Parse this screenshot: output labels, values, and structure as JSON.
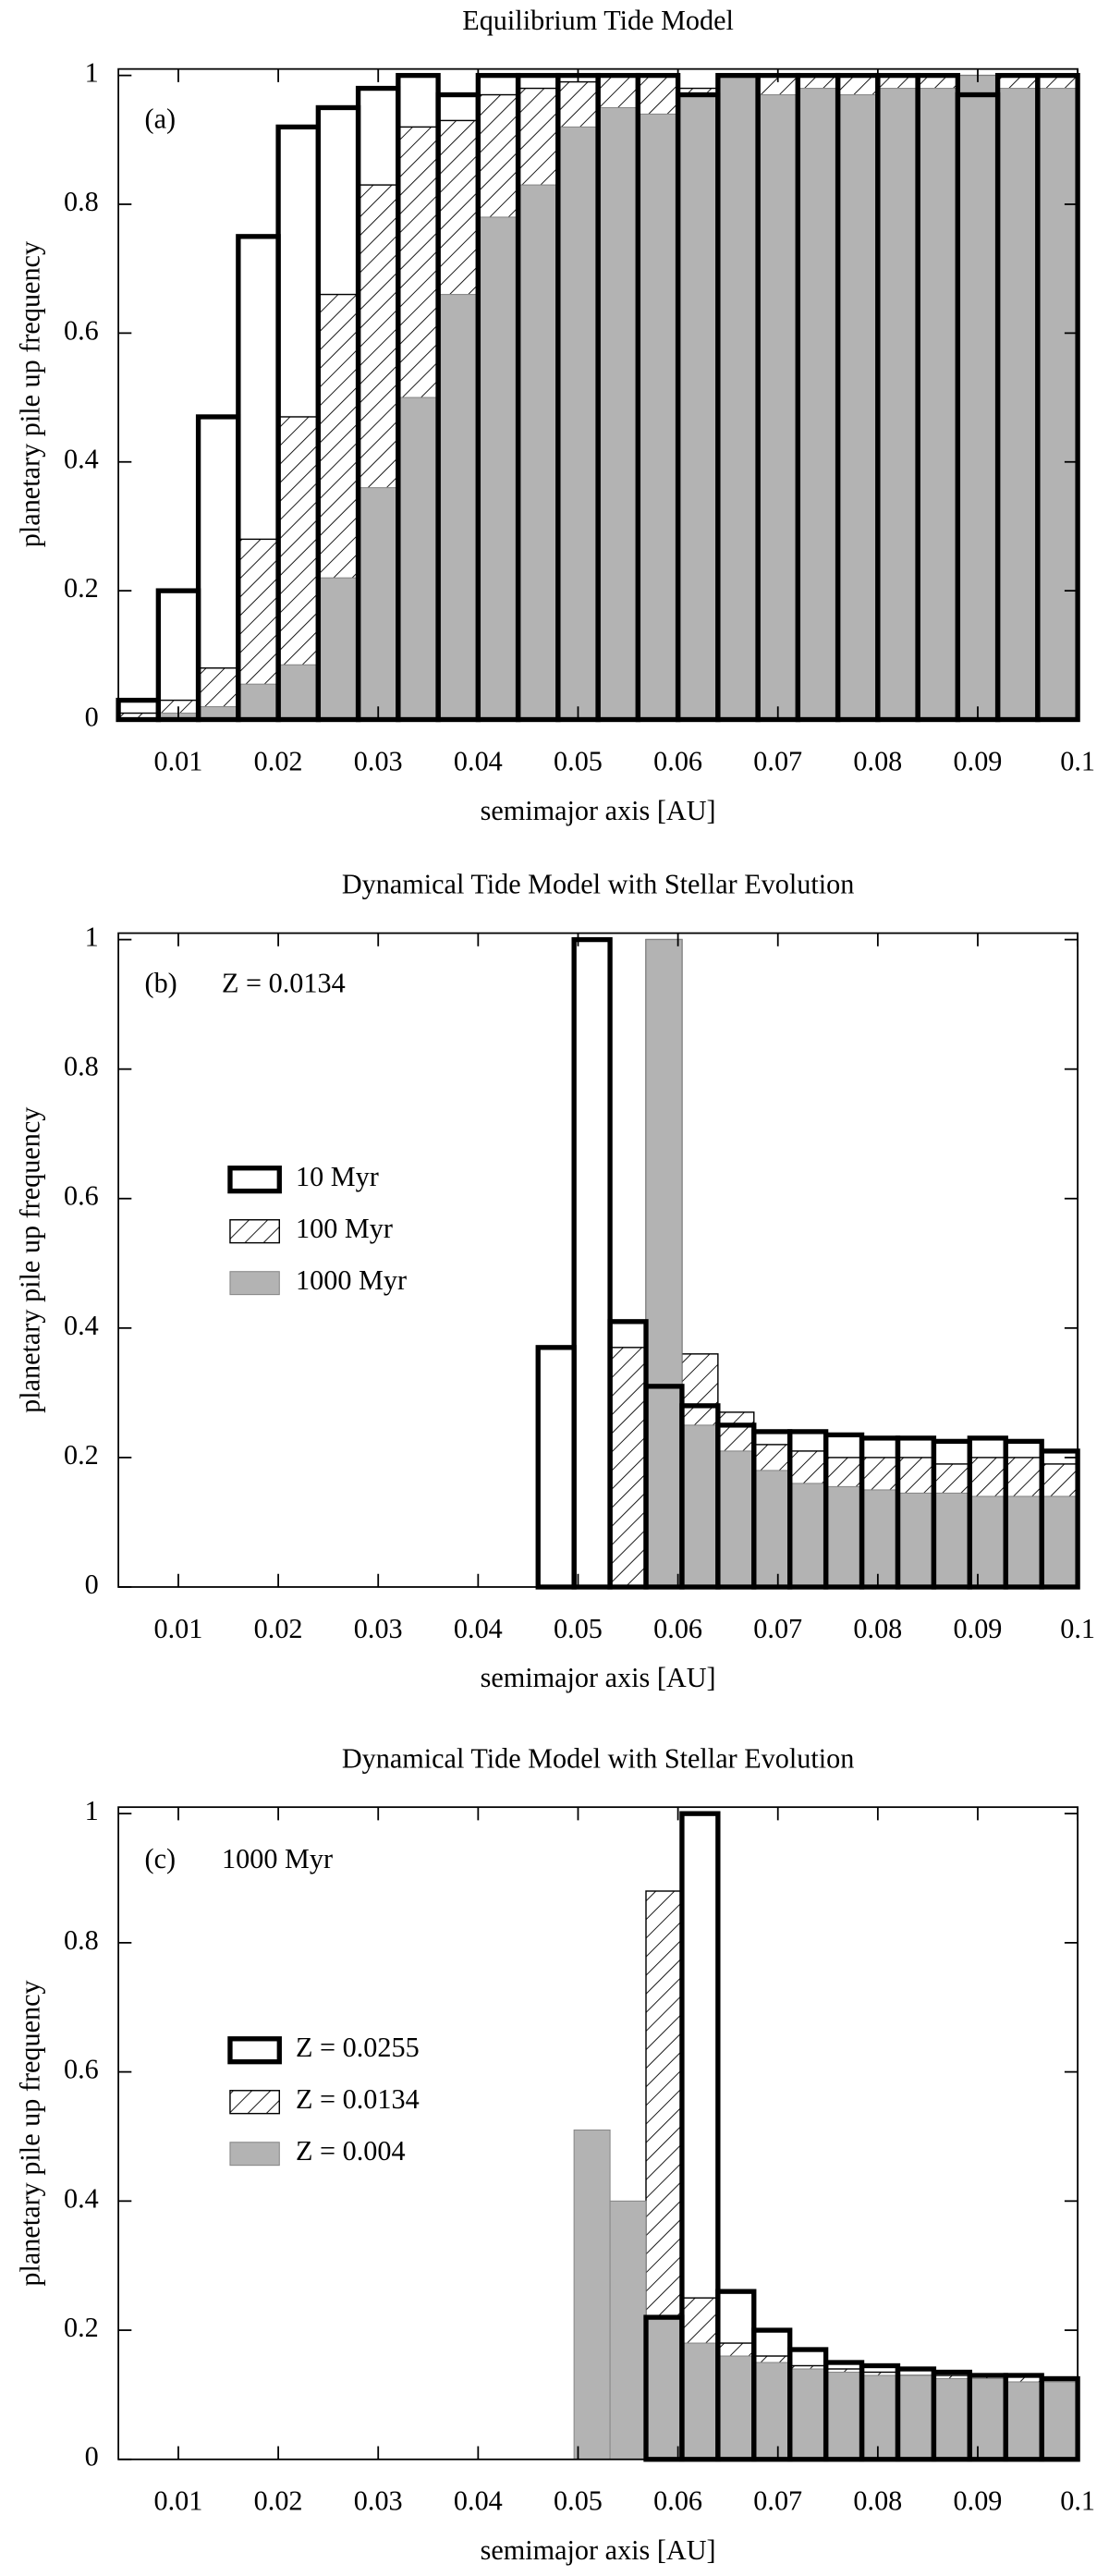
{
  "chart_data": [
    {
      "type": "histogram",
      "title": "Equilibrium Tide Model",
      "annotations": [
        "(a)"
      ],
      "xlabel": "semimajor axis [AU]",
      "ylabel": "planetary pile up frequency",
      "bins": [
        0.004,
        0.008,
        0.012,
        0.016,
        0.02,
        0.024,
        0.028,
        0.032,
        0.036,
        0.04,
        0.044,
        0.048,
        0.052,
        0.056,
        0.06,
        0.064,
        0.068,
        0.072,
        0.076,
        0.08,
        0.084,
        0.088,
        0.092,
        0.096,
        0.1
      ],
      "series": [
        {
          "style": "outline",
          "color": "#000000",
          "values": [
            0.03,
            0.2,
            0.47,
            0.75,
            0.92,
            0.95,
            0.98,
            1,
            0.97,
            1,
            1,
            1,
            1,
            1,
            0.97,
            1,
            1,
            1,
            1,
            1,
            1,
            0.97,
            1,
            1
          ]
        },
        {
          "style": "hatch",
          "color": "#000000",
          "values": [
            0.01,
            0.03,
            0.08,
            0.28,
            0.47,
            0.66,
            0.83,
            0.92,
            0.93,
            0.97,
            0.98,
            0.99,
            1,
            1,
            0.98,
            1,
            1,
            1,
            1,
            1,
            1,
            1,
            1,
            1
          ]
        },
        {
          "style": "fill",
          "color": "#b3b3b3",
          "values": [
            0,
            0.01,
            0.02,
            0.055,
            0.085,
            0.22,
            0.36,
            0.5,
            0.66,
            0.78,
            0.83,
            0.92,
            0.95,
            0.94,
            0.97,
            1,
            0.97,
            0.98,
            0.97,
            0.98,
            0.98,
            1,
            0.98,
            0.98
          ]
        }
      ],
      "xlim": [
        0.004,
        0.1
      ],
      "ylim": [
        0,
        1.01
      ],
      "xticks": [
        0.01,
        0.02,
        0.03,
        0.04,
        0.05,
        0.06,
        0.07,
        0.08,
        0.09,
        0.1
      ],
      "yticks": [
        0,
        0.2,
        0.4,
        0.6,
        0.8,
        1
      ]
    },
    {
      "type": "histogram",
      "title": "Dynamical Tide Model with Stellar Evolution",
      "annotations": [
        "(b)",
        "Z = 0.0134"
      ],
      "xlabel": "semimajor axis [AU]",
      "ylabel": "planetary pile up frequency",
      "legend": "center left",
      "bins": [
        0.046,
        0.0496,
        0.0532,
        0.0568,
        0.0604,
        0.064,
        0.0676,
        0.0712,
        0.0748,
        0.0784,
        0.082,
        0.0856,
        0.0892,
        0.0928,
        0.0964,
        0.1
      ],
      "series": [
        {
          "name": "10 Myr",
          "style": "outline",
          "color": "#000000",
          "values": [
            0.37,
            1,
            0.41,
            0.31,
            0.28,
            0.25,
            0.24,
            0.24,
            0.235,
            0.23,
            0.23,
            0.225,
            0.23,
            0.225,
            0.21
          ]
        },
        {
          "name": "100 Myr",
          "style": "hatch",
          "color": "#000000",
          "values": [
            0,
            0,
            0.37,
            1,
            0.36,
            0.27,
            0.22,
            0.21,
            0.2,
            0.2,
            0.2,
            0.19,
            0.2,
            0.2,
            0.19
          ]
        },
        {
          "name": "1000 Myr",
          "style": "fill",
          "color": "#b3b3b3",
          "values": [
            0,
            0,
            0,
            1,
            0.25,
            0.21,
            0.18,
            0.16,
            0.155,
            0.15,
            0.145,
            0.145,
            0.14,
            0.14,
            0.14
          ]
        }
      ],
      "xlim": [
        0.004,
        0.1
      ],
      "ylim": [
        0,
        1.01
      ],
      "xticks": [
        0.01,
        0.02,
        0.03,
        0.04,
        0.05,
        0.06,
        0.07,
        0.08,
        0.09,
        0.1
      ],
      "yticks": [
        0,
        0.2,
        0.4,
        0.6,
        0.8,
        1
      ]
    },
    {
      "type": "histogram",
      "title": "Dynamical Tide Model with Stellar Evolution",
      "annotations": [
        "(c)",
        "1000 Myr"
      ],
      "xlabel": "semimajor axis [AU]",
      "ylabel": "planetary pile up frequency",
      "legend": "center left",
      "bins": [
        0.046,
        0.0496,
        0.0532,
        0.0568,
        0.0604,
        0.064,
        0.0676,
        0.0712,
        0.0748,
        0.0784,
        0.082,
        0.0856,
        0.0892,
        0.0928,
        0.0964,
        0.1
      ],
      "series": [
        {
          "name": "Z = 0.0255",
          "style": "outline",
          "color": "#000000",
          "values": [
            0,
            0,
            0,
            0.22,
            1,
            0.26,
            0.2,
            0.17,
            0.15,
            0.145,
            0.14,
            0.135,
            0.13,
            0.13,
            0.125
          ]
        },
        {
          "name": "Z = 0.0134",
          "style": "hatch",
          "color": "#000000",
          "values": [
            0,
            0,
            0,
            0.88,
            0.25,
            0.18,
            0.16,
            0.145,
            0.14,
            0.135,
            0.13,
            0.13,
            0.13,
            0.13,
            0.12
          ]
        },
        {
          "name": "Z = 0.004",
          "style": "fill",
          "color": "#b3b3b3",
          "values": [
            0,
            0.51,
            0.4,
            0.22,
            0.18,
            0.16,
            0.15,
            0.14,
            0.135,
            0.13,
            0.13,
            0.125,
            0.125,
            0.12,
            0.12
          ]
        }
      ],
      "xlim": [
        0.004,
        0.1
      ],
      "ylim": [
        0,
        1.01
      ],
      "xticks": [
        0.01,
        0.02,
        0.03,
        0.04,
        0.05,
        0.06,
        0.07,
        0.08,
        0.09,
        0.1
      ],
      "yticks": [
        0,
        0.2,
        0.4,
        0.6,
        0.8,
        1
      ]
    }
  ]
}
